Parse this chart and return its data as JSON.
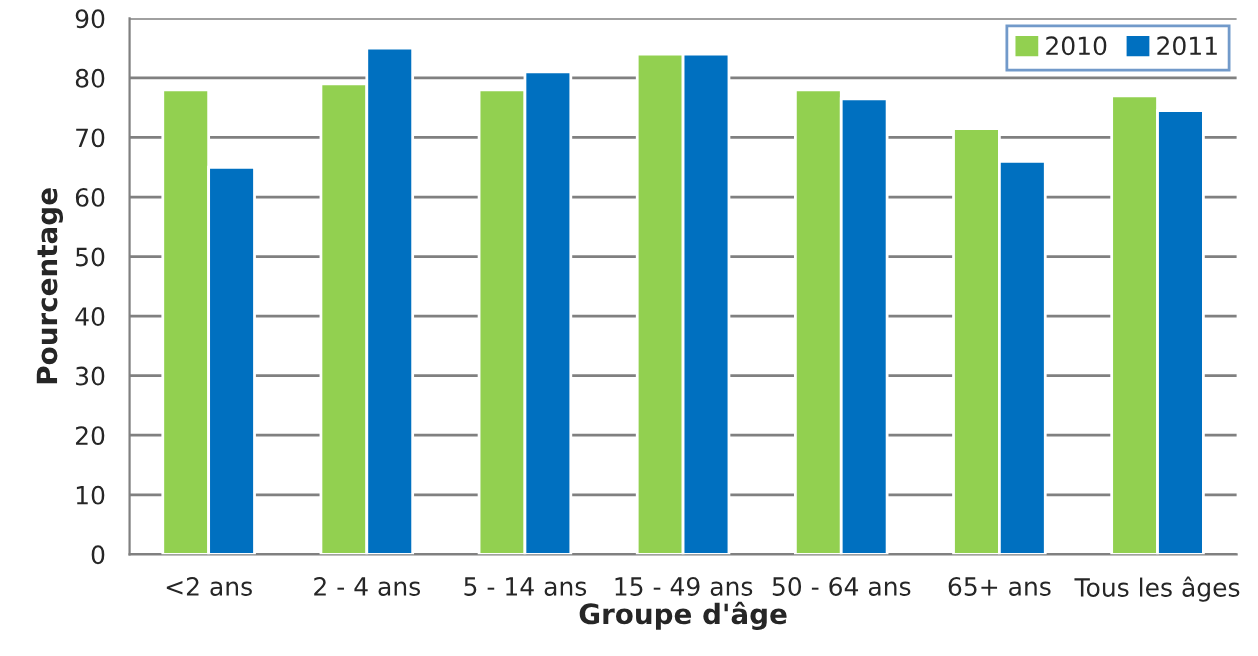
{
  "chart_data": {
    "type": "bar",
    "xlabel": "Groupe d'âge",
    "ylabel": "Pourcentage",
    "categories": [
      "<2 ans",
      "2 - 4 ans",
      "5 - 14 ans",
      "15 - 49 ans",
      "50 - 64 ans",
      "65+ ans",
      "Tous les âges"
    ],
    "series": [
      {
        "name": "2010",
        "color": "#92d050",
        "values": [
          78,
          79,
          78,
          84,
          78,
          71.5,
          77
        ]
      },
      {
        "name": "2011",
        "color": "#0070c0",
        "values": [
          65,
          85,
          81,
          84,
          76.5,
          66,
          74.5
        ]
      }
    ],
    "ylim": [
      0,
      90
    ],
    "yticks": [
      0,
      10,
      20,
      30,
      40,
      50,
      60,
      70,
      80,
      90
    ],
    "grid": "y",
    "legend": "top right"
  }
}
